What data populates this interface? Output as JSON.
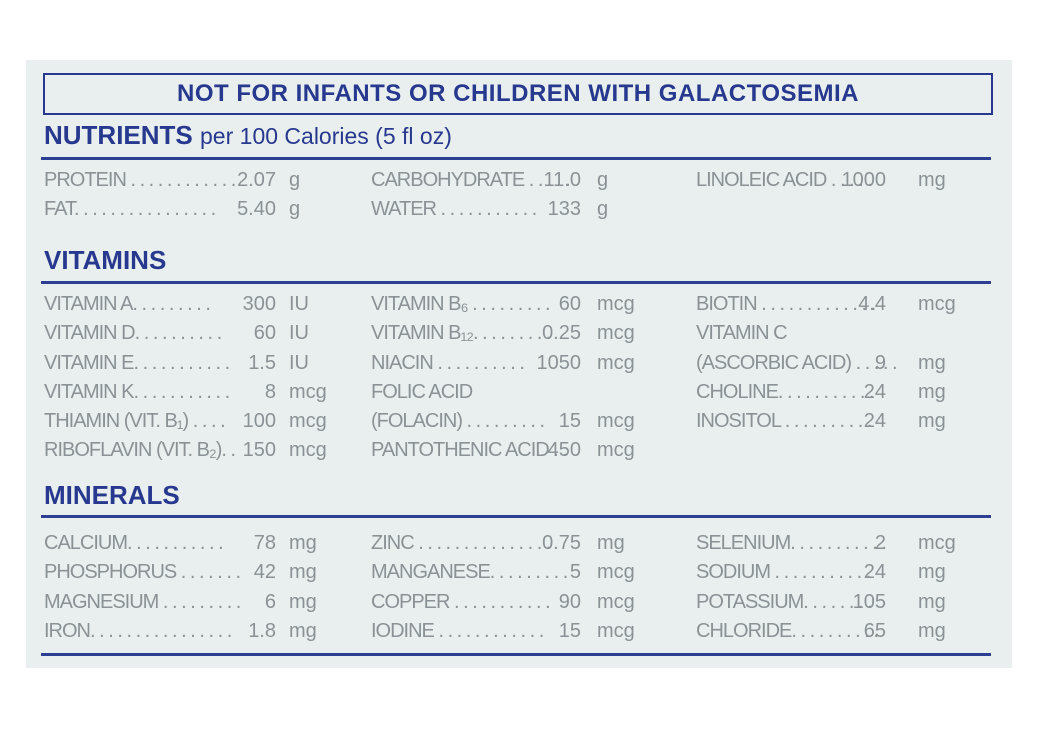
{
  "warning": "NOT FOR INFANTS OR CHILDREN WITH GALACTOSEMIA",
  "nutrients": {
    "title": "NUTRIENTS",
    "subtitle": "per 100 Calories (5 fl oz)",
    "cols": [
      [
        {
          "name": "PROTEIN . . . . . . . . . . . .",
          "value": "2.07",
          "unit": "g"
        },
        {
          "name": "FAT. . . . . . . . . . . . . . . .",
          "value": "5.40",
          "unit": "g"
        }
      ],
      [
        {
          "name": "CARBOHYDRATE . . . . .",
          "value": "11.0",
          "unit": "g"
        },
        {
          "name": "WATER . . . . . . . . . . .",
          "value": "133",
          "unit": "g"
        }
      ],
      [
        {
          "name": "LINOLEIC ACID . . . . .",
          "value": "1000",
          "unit": "mg"
        }
      ]
    ]
  },
  "vitamins": {
    "title": "VITAMINS",
    "cols": [
      [
        {
          "name": "VITAMIN A. . . . . . . . .",
          "value": "300",
          "unit": "IU"
        },
        {
          "name": "VITAMIN D. . . . . . . . . .",
          "value": "60",
          "unit": "IU"
        },
        {
          "name": "VITAMIN E. . . . . . . . . . .",
          "value": "1.5",
          "unit": "IU"
        },
        {
          "name": "VITAMIN K. . . . . . . . . . .",
          "value": "8",
          "unit": "mcg"
        },
        {
          "name": "THIAMIN (VIT. B₁) . . . .",
          "value": "100",
          "unit": "mcg"
        },
        {
          "name": "RIBOFLAVIN (VIT. B₂). .",
          "value": "150",
          "unit": "mcg"
        }
      ],
      [
        {
          "name": "VITAMIN B₆ . . . . . . . . .",
          "value": "60",
          "unit": "mcg"
        },
        {
          "name": "VITAMIN B₁₂. . . . . . . . .",
          "value": "0.25",
          "unit": "mcg"
        },
        {
          "name": "NIACIN . . . . . . . . . .",
          "value": "1050",
          "unit": "mcg"
        },
        {
          "name": "FOLIC ACID",
          "value": "",
          "unit": ""
        },
        {
          "name": "  (FOLACIN) . . . . . . . . .",
          "value": "15",
          "unit": "mcg"
        },
        {
          "name": "PANTOTHENIC ACID . .",
          "value": "450",
          "unit": "mcg"
        }
      ],
      [
        {
          "name": "BIOTIN . . . . . . . . . . . . .",
          "value": "4.4",
          "unit": "mcg"
        },
        {
          "name": "VITAMIN C",
          "value": "",
          "unit": ""
        },
        {
          "name": "  (ASCORBIC ACID) . . . . .",
          "value": "9",
          "unit": "mg"
        },
        {
          "name": "CHOLINE. . . . . . . . . . .",
          "value": "24",
          "unit": "mg"
        },
        {
          "name": "INOSITOL . . . . . . . . . .",
          "value": "24",
          "unit": "mg"
        }
      ]
    ]
  },
  "minerals": {
    "title": "MINERALS",
    "cols": [
      [
        {
          "name": "CALCIUM. . . . . . . . . . .",
          "value": "78",
          "unit": "mg"
        },
        {
          "name": "PHOSPHORUS . . . . . . .",
          "value": "42",
          "unit": "mg"
        },
        {
          "name": "MAGNESIUM . . . . . . . . .",
          "value": "6",
          "unit": "mg"
        },
        {
          "name": "IRON. . . . . . . . . . . . . . . .",
          "value": "1.8",
          "unit": "mg"
        }
      ],
      [
        {
          "name": "ZINC . . . . . . . . . . . . . . .",
          "value": "0.75",
          "unit": "mg"
        },
        {
          "name": "MANGANESE. . . . . . . . .",
          "value": "5",
          "unit": "mcg"
        },
        {
          "name": "COPPER . . . . . . . . . . .",
          "value": "90",
          "unit": "mcg"
        },
        {
          "name": "IODINE . . . . . . . . . . . .",
          "value": "15",
          "unit": "mcg"
        }
      ],
      [
        {
          "name": "SELENIUM. . . . . . . . . . .",
          "value": "2",
          "unit": "mcg"
        },
        {
          "name": "SODIUM . . . . . . . . . . .",
          "value": "24",
          "unit": "mg"
        },
        {
          "name": "POTASSIUM. . . . . . . .",
          "value": "105",
          "unit": "mg"
        },
        {
          "name": "CHLORIDE. . . . . . . . . .",
          "value": "65",
          "unit": "mg"
        }
      ]
    ]
  },
  "colors": {
    "brand_blue": "#27388f",
    "text_gray": "#8a9296",
    "panel_bg": "#e9efee"
  }
}
